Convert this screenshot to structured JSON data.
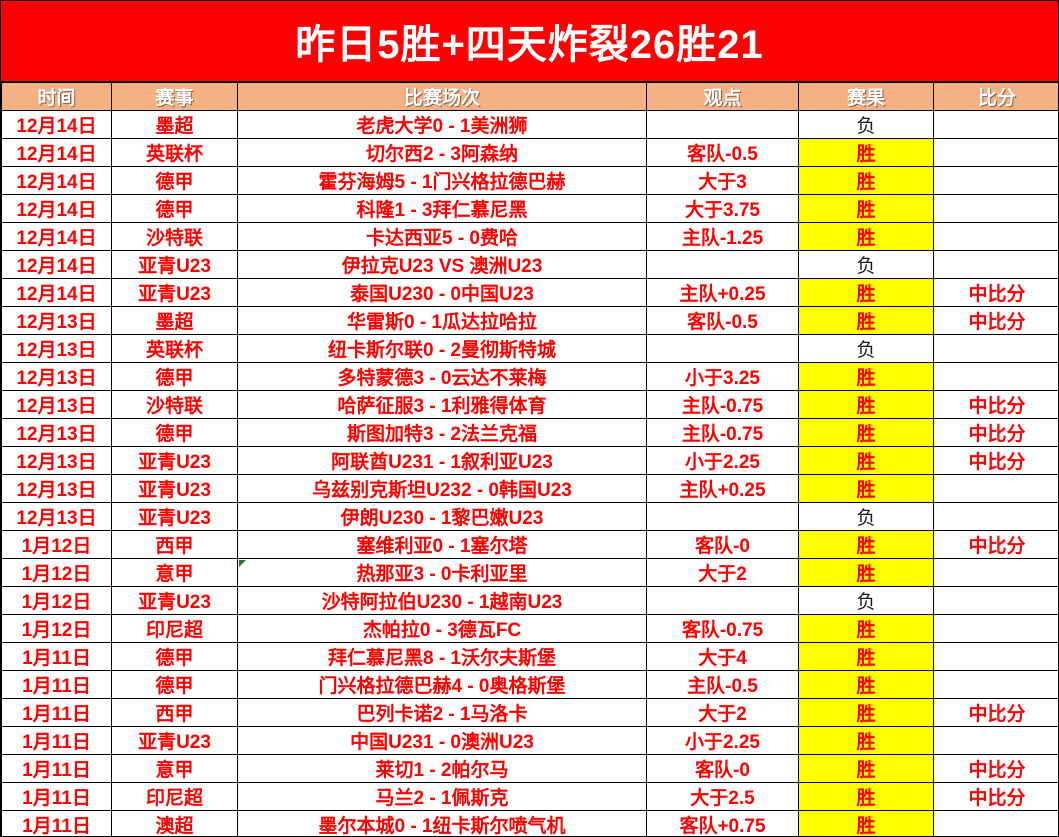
{
  "banner": {
    "title": "昨日5胜+四天炸裂26胜21"
  },
  "colors": {
    "banner_bg": "#FF0000",
    "banner_text": "#FFFFFF",
    "header_bg": "#F4B183",
    "header_text": "#FFFFFF",
    "win_bg": "#FFFF00",
    "text_red": "#FF0000",
    "loss_text": "#1A1A1A",
    "grid_line": "#000000",
    "comment_marker": "#1F7A1F"
  },
  "table": {
    "win_text": "胜",
    "loss_text": "负",
    "columns": [
      {
        "key": "date",
        "label": "时间"
      },
      {
        "key": "league",
        "label": "赛事"
      },
      {
        "key": "match",
        "label": "比赛场次"
      },
      {
        "key": "opinion",
        "label": "观点"
      },
      {
        "key": "result",
        "label": "赛果"
      },
      {
        "key": "score",
        "label": "比分"
      }
    ],
    "rows": [
      {
        "date": "12月14日",
        "league": "墨超",
        "match": "老虎大学0 - 1美洲狮",
        "opinion": "",
        "result": "负",
        "score": ""
      },
      {
        "date": "12月14日",
        "league": "英联杯",
        "match": "切尔西2 - 3阿森纳",
        "opinion": "客队-0.5",
        "result": "胜",
        "score": ""
      },
      {
        "date": "12月14日",
        "league": "德甲",
        "match": "霍芬海姆5 - 1门兴格拉德巴赫",
        "opinion": "大于3",
        "result": "胜",
        "score": ""
      },
      {
        "date": "12月14日",
        "league": "德甲",
        "match": "科隆1 - 3拜仁慕尼黑",
        "opinion": "大于3.75",
        "result": "胜",
        "score": ""
      },
      {
        "date": "12月14日",
        "league": "沙特联",
        "match": "卡达西亚5 - 0费哈",
        "opinion": "主队-1.25",
        "result": "胜",
        "score": ""
      },
      {
        "date": "12月14日",
        "league": "亚青U23",
        "match": "伊拉克U23 VS 澳洲U23",
        "opinion": "",
        "result": "负",
        "score": ""
      },
      {
        "date": "12月14日",
        "league": "亚青U23",
        "match": "泰国U230 - 0中国U23",
        "opinion": "主队+0.25",
        "result": "胜",
        "score": "中比分"
      },
      {
        "date": "12月13日",
        "league": "墨超",
        "match": "华雷斯0 - 1瓜达拉哈拉",
        "opinion": "客队-0.5",
        "result": "胜",
        "score": "中比分"
      },
      {
        "date": "12月13日",
        "league": "英联杯",
        "match": "纽卡斯尔联0 - 2曼彻斯特城",
        "opinion": "",
        "result": "负",
        "score": ""
      },
      {
        "date": "12月13日",
        "league": "德甲",
        "match": "多特蒙德3 - 0云达不莱梅",
        "opinion": "小于3.25",
        "result": "胜",
        "score": ""
      },
      {
        "date": "12月13日",
        "league": "沙特联",
        "match": "哈萨征服3 - 1利雅得体育",
        "opinion": "主队-0.75",
        "result": "胜",
        "score": "中比分"
      },
      {
        "date": "12月13日",
        "league": "德甲",
        "match": "斯图加特3 - 2法兰克福",
        "opinion": "主队-0.75",
        "result": "胜",
        "score": "中比分"
      },
      {
        "date": "12月13日",
        "league": "亚青U23",
        "match": "阿联酋U231 - 1叙利亚U23",
        "opinion": "小于2.25",
        "result": "胜",
        "score": "中比分"
      },
      {
        "date": "12月13日",
        "league": "亚青U23",
        "match": "乌兹别克斯坦U232 - 0韩国U23",
        "opinion": "主队+0.25",
        "result": "胜",
        "score": ""
      },
      {
        "date": "12月13日",
        "league": "亚青U23",
        "match": "伊朗U230 - 1黎巴嫩U23",
        "opinion": "",
        "result": "负",
        "score": ""
      },
      {
        "date": "1月12日",
        "league": "西甲",
        "match": "塞维利亚0 - 1塞尔塔",
        "opinion": "客队-0",
        "result": "胜",
        "score": "中比分"
      },
      {
        "date": "1月12日",
        "league": "意甲",
        "match": "热那亚3 - 0卡利亚里",
        "opinion": "大于2",
        "result": "胜",
        "score": "",
        "comment_marker": true
      },
      {
        "date": "1月12日",
        "league": "亚青U23",
        "match": "沙特阿拉伯U230 - 1越南U23",
        "opinion": "",
        "result": "负",
        "score": ""
      },
      {
        "date": "1月12日",
        "league": "印尼超",
        "match": "杰帕拉0 - 3德瓦FC",
        "opinion": "客队-0.75",
        "result": "胜",
        "score": ""
      },
      {
        "date": "1月11日",
        "league": "德甲",
        "match": "拜仁慕尼黑8 - 1沃尔夫斯堡",
        "opinion": "大于4",
        "result": "胜",
        "score": ""
      },
      {
        "date": "1月11日",
        "league": "德甲",
        "match": "门兴格拉德巴赫4 - 0奥格斯堡",
        "opinion": "主队-0.5",
        "result": "胜",
        "score": ""
      },
      {
        "date": "1月11日",
        "league": "西甲",
        "match": "巴列卡诺2 - 1马洛卡",
        "opinion": "大于2",
        "result": "胜",
        "score": "中比分"
      },
      {
        "date": "1月11日",
        "league": "亚青U23",
        "match": "中国U231 - 0澳洲U23",
        "opinion": "小于2.25",
        "result": "胜",
        "score": ""
      },
      {
        "date": "1月11日",
        "league": "意甲",
        "match": "莱切1 - 2帕尔马",
        "opinion": "客队-0",
        "result": "胜",
        "score": "中比分"
      },
      {
        "date": "1月11日",
        "league": "印尼超",
        "match": "马兰2 - 1佩斯克",
        "opinion": "大于2.5",
        "result": "胜",
        "score": "中比分"
      },
      {
        "date": "1月11日",
        "league": "澳超",
        "match": "墨尔本城0 - 1纽卡斯尔喷气机",
        "opinion": "客队+0.75",
        "result": "胜",
        "score": ""
      }
    ]
  }
}
